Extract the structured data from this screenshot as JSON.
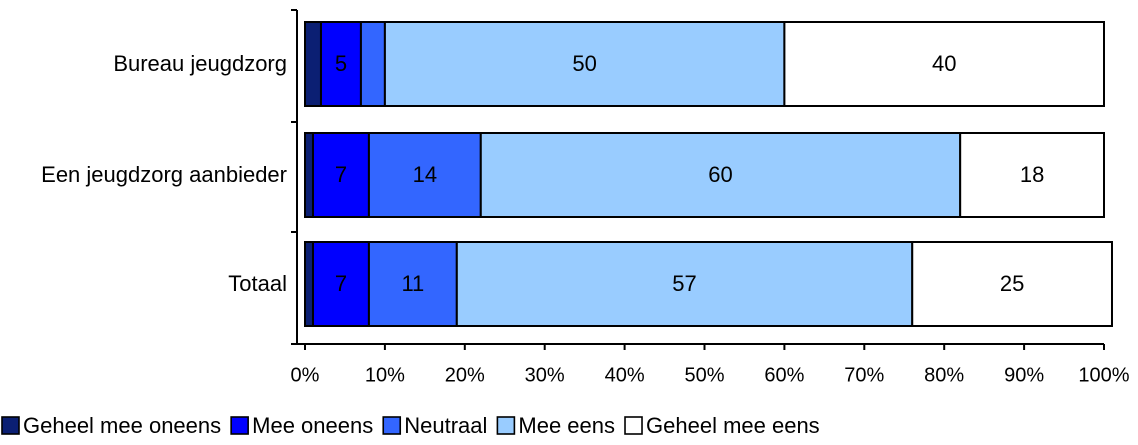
{
  "chart_data": {
    "type": "bar",
    "orientation": "horizontal",
    "stacked": true,
    "percent": true,
    "categories": [
      "Bureau jeugdzorg",
      "Een jeugdzorg aanbieder",
      "Totaal"
    ],
    "series": [
      {
        "name": "Geheel mee oneens",
        "color": "#0b1f73",
        "values": [
          2,
          1,
          1
        ],
        "labels": [
          "",
          "",
          ""
        ]
      },
      {
        "name": "Mee oneens",
        "color": "#0000ff",
        "values": [
          5,
          7,
          7
        ],
        "labels": [
          "5",
          "7",
          "7"
        ]
      },
      {
        "name": "Neutraal",
        "color": "#3366ff",
        "values": [
          3,
          14,
          11
        ],
        "labels": [
          "",
          "14",
          "11"
        ]
      },
      {
        "name": "Mee eens",
        "color": "#99ccff",
        "values": [
          50,
          60,
          57
        ],
        "labels": [
          "50",
          "60",
          "57"
        ]
      },
      {
        "name": "Geheel mee eens",
        "color": "#ffffff",
        "values": [
          40,
          18,
          25
        ],
        "labels": [
          "40",
          "18",
          "25"
        ]
      }
    ],
    "xlim": [
      0,
      100
    ],
    "xticks": [
      "0%",
      "10%",
      "20%",
      "30%",
      "40%",
      "50%",
      "60%",
      "70%",
      "80%",
      "90%",
      "100%"
    ],
    "title": "",
    "xlabel": "",
    "ylabel": "",
    "grid": false,
    "legend_position": "bottom"
  }
}
